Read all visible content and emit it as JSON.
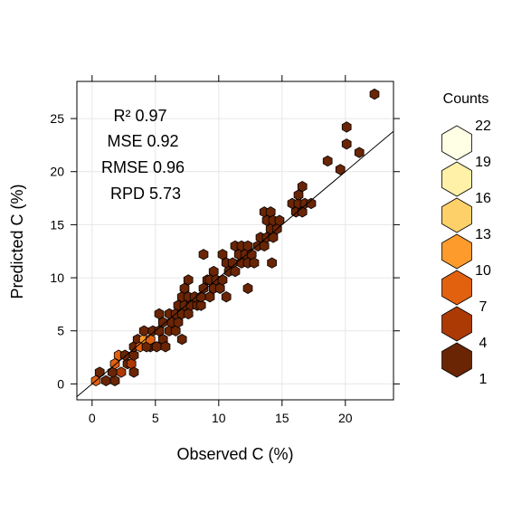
{
  "chart_data": {
    "type": "hexbin",
    "xlabel": "Observed C (%)",
    "ylabel": "Predicted C (%)",
    "xlim": [
      -1.2,
      23.8
    ],
    "ylim": [
      -1.5,
      28.5
    ],
    "x_ticks": [
      0,
      5,
      10,
      15,
      20
    ],
    "y_ticks": [
      0,
      5,
      10,
      15,
      20,
      25
    ],
    "grid": true,
    "reference_line": "1:1",
    "stats": [
      {
        "label": "R² 0.97"
      },
      {
        "label": "MSE 0.92"
      },
      {
        "label": "RMSE 0.96"
      },
      {
        "label": "RPD 5.73"
      }
    ],
    "legend": {
      "title": "Counts",
      "placement": "right",
      "levels": [
        {
          "label": "22",
          "color": "#ffffe5"
        },
        {
          "label": "19",
          "color": "#fff1a8"
        },
        {
          "label": "16",
          "color": "#fdd06a"
        },
        {
          "label": "13",
          "color": "#fd9b2c"
        },
        {
          "label": "10",
          "color": "#e2610f"
        },
        {
          "label": "7",
          "color": "#ac3a05"
        },
        {
          "label": "4",
          "color": "#6a2505"
        },
        {
          "label": "1",
          "color": "#6a2505"
        }
      ]
    },
    "hexes": [
      {
        "x": 0.3,
        "y": 0.3,
        "count": 10
      },
      {
        "x": 0.6,
        "y": 1.1,
        "count": 4
      },
      {
        "x": 1.1,
        "y": 0.3,
        "count": 1
      },
      {
        "x": 1.8,
        "y": 0.3,
        "count": 1
      },
      {
        "x": 1.6,
        "y": 1.1,
        "count": 4
      },
      {
        "x": 1.8,
        "y": 1.9,
        "count": 12
      },
      {
        "x": 2.3,
        "y": 1.1,
        "count": 7
      },
      {
        "x": 2.1,
        "y": 2.7,
        "count": 10
      },
      {
        "x": 2.8,
        "y": 1.9,
        "count": 4
      },
      {
        "x": 2.6,
        "y": 2.7,
        "count": 4
      },
      {
        "x": 3.1,
        "y": 1.9,
        "count": 7
      },
      {
        "x": 3.3,
        "y": 2.7,
        "count": 4
      },
      {
        "x": 3.3,
        "y": 3.5,
        "count": 1
      },
      {
        "x": 3.6,
        "y": 4.2,
        "count": 1
      },
      {
        "x": 3.3,
        "y": 1.1,
        "count": 1
      },
      {
        "x": 3.8,
        "y": 3.5,
        "count": 10
      },
      {
        "x": 4.1,
        "y": 4.2,
        "count": 13
      },
      {
        "x": 4.1,
        "y": 5.0,
        "count": 1
      },
      {
        "x": 4.6,
        "y": 3.5,
        "count": 1
      },
      {
        "x": 4.3,
        "y": 3.5,
        "count": 4
      },
      {
        "x": 5.1,
        "y": 3.5,
        "count": 1
      },
      {
        "x": 4.6,
        "y": 4.2,
        "count": 10
      },
      {
        "x": 4.8,
        "y": 5.0,
        "count": 4
      },
      {
        "x": 5.3,
        "y": 5.0,
        "count": 1
      },
      {
        "x": 5.6,
        "y": 4.2,
        "count": 1
      },
      {
        "x": 5.8,
        "y": 3.5,
        "count": 1
      },
      {
        "x": 5.6,
        "y": 5.8,
        "count": 1
      },
      {
        "x": 5.3,
        "y": 6.6,
        "count": 1
      },
      {
        "x": 6.1,
        "y": 5.0,
        "count": 1
      },
      {
        "x": 6.1,
        "y": 6.6,
        "count": 1
      },
      {
        "x": 6.3,
        "y": 5.8,
        "count": 1
      },
      {
        "x": 6.6,
        "y": 5.0,
        "count": 1
      },
      {
        "x": 6.8,
        "y": 5.8,
        "count": 1
      },
      {
        "x": 6.6,
        "y": 6.6,
        "count": 1
      },
      {
        "x": 6.8,
        "y": 7.4,
        "count": 1
      },
      {
        "x": 7.1,
        "y": 6.6,
        "count": 1
      },
      {
        "x": 7.3,
        "y": 7.4,
        "count": 1
      },
      {
        "x": 7.1,
        "y": 8.2,
        "count": 1
      },
      {
        "x": 7.3,
        "y": 9.0,
        "count": 1
      },
      {
        "x": 7.6,
        "y": 9.8,
        "count": 1
      },
      {
        "x": 7.6,
        "y": 8.2,
        "count": 1
      },
      {
        "x": 7.8,
        "y": 7.4,
        "count": 1
      },
      {
        "x": 7.6,
        "y": 6.6,
        "count": 1
      },
      {
        "x": 7.1,
        "y": 4.2,
        "count": 1
      },
      {
        "x": 8.3,
        "y": 7.4,
        "count": 1
      },
      {
        "x": 8.1,
        "y": 8.2,
        "count": 1
      },
      {
        "x": 8.6,
        "y": 7.4,
        "count": 1
      },
      {
        "x": 8.6,
        "y": 8.2,
        "count": 1
      },
      {
        "x": 8.8,
        "y": 9.0,
        "count": 1
      },
      {
        "x": 9.1,
        "y": 9.8,
        "count": 1
      },
      {
        "x": 8.8,
        "y": 12.2,
        "count": 1
      },
      {
        "x": 9.3,
        "y": 8.2,
        "count": 1
      },
      {
        "x": 9.6,
        "y": 9.0,
        "count": 1
      },
      {
        "x": 9.3,
        "y": 9.8,
        "count": 1
      },
      {
        "x": 9.6,
        "y": 10.6,
        "count": 1
      },
      {
        "x": 9.8,
        "y": 9.8,
        "count": 1
      },
      {
        "x": 10.1,
        "y": 9.0,
        "count": 1
      },
      {
        "x": 10.3,
        "y": 9.8,
        "count": 1
      },
      {
        "x": 10.3,
        "y": 12.2,
        "count": 1
      },
      {
        "x": 10.6,
        "y": 11.4,
        "count": 1
      },
      {
        "x": 10.8,
        "y": 10.6,
        "count": 1
      },
      {
        "x": 10.6,
        "y": 8.2,
        "count": 1
      },
      {
        "x": 11.1,
        "y": 11.4,
        "count": 1
      },
      {
        "x": 11.3,
        "y": 10.6,
        "count": 1
      },
      {
        "x": 11.3,
        "y": 13.0,
        "count": 1
      },
      {
        "x": 11.6,
        "y": 12.2,
        "count": 1
      },
      {
        "x": 11.8,
        "y": 11.4,
        "count": 1
      },
      {
        "x": 11.8,
        "y": 13.0,
        "count": 1
      },
      {
        "x": 12.1,
        "y": 12.2,
        "count": 1
      },
      {
        "x": 12.3,
        "y": 11.4,
        "count": 1
      },
      {
        "x": 12.3,
        "y": 13.0,
        "count": 1
      },
      {
        "x": 12.6,
        "y": 12.2,
        "count": 1
      },
      {
        "x": 12.3,
        "y": 9.0,
        "count": 1
      },
      {
        "x": 12.8,
        "y": 11.4,
        "count": 1
      },
      {
        "x": 13.1,
        "y": 13.0,
        "count": 1
      },
      {
        "x": 13.3,
        "y": 13.8,
        "count": 1
      },
      {
        "x": 13.6,
        "y": 13.0,
        "count": 1
      },
      {
        "x": 13.6,
        "y": 16.2,
        "count": 1
      },
      {
        "x": 13.8,
        "y": 15.4,
        "count": 1
      },
      {
        "x": 13.8,
        "y": 13.8,
        "count": 1
      },
      {
        "x": 14.1,
        "y": 14.6,
        "count": 1
      },
      {
        "x": 14.1,
        "y": 16.2,
        "count": 1
      },
      {
        "x": 14.3,
        "y": 15.4,
        "count": 1
      },
      {
        "x": 14.3,
        "y": 13.8,
        "count": 1
      },
      {
        "x": 14.6,
        "y": 14.6,
        "count": 1
      },
      {
        "x": 14.8,
        "y": 15.4,
        "count": 1
      },
      {
        "x": 14.2,
        "y": 11.4,
        "count": 1
      },
      {
        "x": 15.8,
        "y": 17.0,
        "count": 1
      },
      {
        "x": 16.1,
        "y": 16.2,
        "count": 1
      },
      {
        "x": 16.3,
        "y": 17.0,
        "count": 1
      },
      {
        "x": 16.3,
        "y": 17.8,
        "count": 1
      },
      {
        "x": 16.6,
        "y": 18.6,
        "count": 1
      },
      {
        "x": 16.6,
        "y": 16.2,
        "count": 1
      },
      {
        "x": 16.8,
        "y": 17.0,
        "count": 1
      },
      {
        "x": 17.3,
        "y": 17.0,
        "count": 1
      },
      {
        "x": 18.6,
        "y": 21.0,
        "count": 1
      },
      {
        "x": 19.6,
        "y": 20.2,
        "count": 1
      },
      {
        "x": 20.1,
        "y": 22.6,
        "count": 1
      },
      {
        "x": 20.1,
        "y": 24.2,
        "count": 1
      },
      {
        "x": 21.1,
        "y": 21.8,
        "count": 1
      },
      {
        "x": 22.3,
        "y": 27.3,
        "count": 1
      }
    ]
  }
}
